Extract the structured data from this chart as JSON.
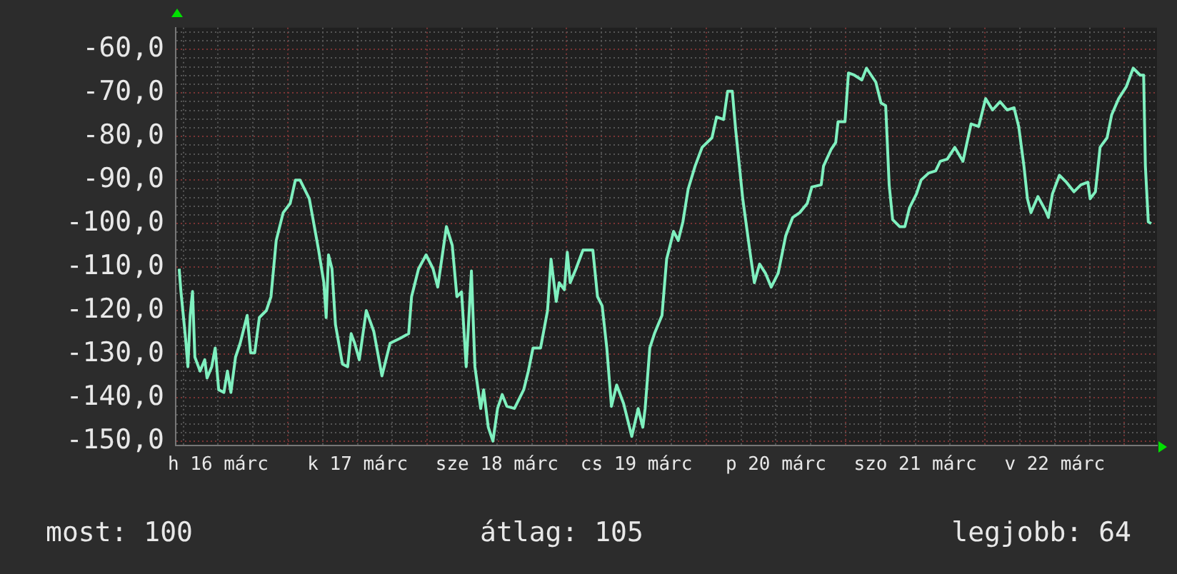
{
  "chart_data": {
    "type": "line",
    "x": [
      "--03-16T05:18",
      "--03-16T05:36",
      "--03-16T06:24",
      "--03-16T06:48",
      "--03-16T07:12",
      "--03-16T07:36",
      "--03-16T08:00",
      "--03-16T08:54",
      "--03-16T09:42",
      "--03-16T10:06",
      "--03-16T10:54",
      "--03-16T11:30",
      "--03-16T12:06",
      "--03-16T13:00",
      "--03-16T13:36",
      "--03-16T14:12",
      "--03-16T15:00",
      "--03-16T15:48",
      "--03-16T17:00",
      "--03-16T17:36",
      "--03-16T18:18",
      "--03-16T19:06",
      "--03-16T20:18",
      "--03-16T21:06",
      "--03-16T22:00",
      "--03-16T23:12",
      "--03-17T00:24",
      "--03-17T01:18",
      "--03-17T02:06",
      "--03-17T03:42",
      "--03-17T05:18",
      "--03-17T06:12",
      "--03-17T06:36",
      "--03-17T07:00",
      "--03-17T07:36",
      "--03-17T08:12",
      "--03-17T09:24",
      "--03-17T10:18",
      "--03-17T10:54",
      "--03-17T11:30",
      "--03-17T12:18",
      "--03-17T13:30",
      "--03-17T14:48",
      "--03-17T16:12",
      "--03-17T17:36",
      "--03-17T19:18",
      "--03-17T20:48",
      "--03-17T21:18",
      "--03-17T22:30",
      "--03-17T23:48",
      "--03-18T01:00",
      "--03-18T01:48",
      "--03-18T03:18",
      "--03-18T04:18",
      "--03-18T05:06",
      "--03-18T05:54",
      "--03-18T06:42",
      "--03-18T07:36",
      "--03-18T08:12",
      "--03-18T09:12",
      "--03-18T09:42",
      "--03-18T10:30",
      "--03-18T11:18",
      "--03-18T12:06",
      "--03-18T12:54",
      "--03-18T13:42",
      "--03-18T15:00",
      "--03-18T16:36",
      "--03-18T17:24",
      "--03-18T18:12",
      "--03-18T19:30",
      "--03-18T20:42",
      "--03-18T21:18",
      "--03-18T22:12",
      "--03-18T22:42",
      "--03-18T23:36",
      "--03-19T00:06",
      "--03-19T00:36",
      "--03-19T01:36",
      "--03-19T02:48",
      "--03-19T04:30",
      "--03-19T05:18",
      "--03-19T06:06",
      "--03-19T06:54",
      "--03-19T07:42",
      "--03-19T08:36",
      "--03-19T09:48",
      "--03-19T11:12",
      "--03-19T12:18",
      "--03-19T13:06",
      "--03-19T13:30",
      "--03-19T14:18",
      "--03-19T15:06",
      "--03-19T16:24",
      "--03-19T17:12",
      "--03-19T18:24",
      "--03-19T19:12",
      "--03-19T20:00",
      "--03-19T20:54",
      "--03-19T22:06",
      "--03-19T23:18",
      "--03-20T01:00",
      "--03-20T01:48",
      "--03-20T03:00",
      "--03-20T03:42",
      "--03-20T04:30",
      "--03-20T05:06",
      "--03-20T06:18",
      "--03-20T07:30",
      "--03-20T08:18",
      "--03-20T09:12",
      "--03-20T10:12",
      "--03-20T11:12",
      "--03-20T12:24",
      "--03-20T13:42",
      "--03-20T14:54",
      "--03-20T16:06",
      "--03-20T17:24",
      "--03-20T18:12",
      "--03-20T19:48",
      "--03-20T20:12",
      "--03-20T21:30",
      "--03-20T22:18",
      "--03-20T22:42",
      "--03-20T23:54",
      "--03-21T00:30",
      "--03-21T01:30",
      "--03-21T02:48",
      "--03-21T03:36",
      "--03-21T05:12",
      "--03-21T06:06",
      "--03-21T06:54",
      "--03-21T07:30",
      "--03-21T08:06",
      "--03-21T09:18",
      "--03-21T10:12",
      "--03-21T11:00",
      "--03-21T12:12",
      "--03-21T13:00",
      "--03-21T14:18",
      "--03-21T15:30",
      "--03-21T16:18",
      "--03-21T17:30",
      "--03-21T18:48",
      "--03-21T20:12",
      "--03-21T21:36",
      "--03-21T22:54",
      "--03-22T00:06",
      "--03-22T01:18",
      "--03-22T02:36",
      "--03-22T03:48",
      "--03-22T05:00",
      "--03-22T05:48",
      "--03-22T06:42",
      "--03-22T07:18",
      "--03-22T07:54",
      "--03-22T09:06",
      "--03-22T10:24",
      "--03-22T10:54",
      "--03-22T11:36",
      "--03-22T12:48",
      "--03-22T14:00",
      "--03-22T15:18",
      "--03-22T16:30",
      "--03-22T17:42",
      "--03-22T18:06",
      "--03-22T19:00",
      "--03-22T19:48",
      "--03-22T21:00",
      "--03-22T21:48",
      "--03-22T23:00",
      "--03-23T00:18",
      "--03-23T01:30",
      "--03-23T02:42",
      "--03-23T03:18",
      "--03-23T03:36",
      "--03-23T04:06",
      "--03-23T04:36"
    ],
    "series": [
      {
        "color": "#7ff0bf",
        "values": [
          -110.4,
          -115.6,
          -126.4,
          -132.9,
          -121.1,
          -115.6,
          -130.7,
          -133.9,
          -131.3,
          -135.5,
          -132.9,
          -128.6,
          -138.2,
          -138.8,
          -133.9,
          -138.8,
          -130.7,
          -127.5,
          -121.1,
          -129.7,
          -129.7,
          -121.6,
          -120.0,
          -116.8,
          -103.9,
          -97.5,
          -95.4,
          -90.0,
          -90.0,
          -94.3,
          -106.1,
          -113.6,
          -121.6,
          -107.2,
          -110.4,
          -123.2,
          -132.3,
          -132.9,
          -125.3,
          -127.5,
          -131.3,
          -120.0,
          -124.8,
          -135.0,
          -127.5,
          -126.4,
          -125.3,
          -116.8,
          -110.4,
          -107.2,
          -110.4,
          -114.6,
          -100.7,
          -105.0,
          -116.8,
          -115.7,
          -132.9,
          -110.9,
          -132.9,
          -142.5,
          -138.2,
          -146.8,
          -150.0,
          -142.5,
          -139.3,
          -142.0,
          -142.5,
          -138.2,
          -133.9,
          -128.6,
          -128.6,
          -120.0,
          -108.2,
          -117.9,
          -113.6,
          -115.2,
          -106.6,
          -113.6,
          -110.4,
          -106.1,
          -106.1,
          -116.8,
          -118.9,
          -128.6,
          -142.0,
          -137.1,
          -141.4,
          -148.9,
          -142.5,
          -146.8,
          -142.5,
          -128.6,
          -125.3,
          -121.1,
          -108.2,
          -101.8,
          -103.9,
          -99.6,
          -92.1,
          -86.8,
          -82.5,
          -80.3,
          -75.5,
          -76.1,
          -69.6,
          -69.6,
          -78.7,
          -94.3,
          -106.1,
          -113.6,
          -109.3,
          -111.4,
          -114.6,
          -111.4,
          -102.8,
          -98.6,
          -97.5,
          -95.4,
          -91.6,
          -91.1,
          -86.8,
          -83.0,
          -81.4,
          -76.6,
          -76.6,
          -65.4,
          -65.9,
          -67.0,
          -64.3,
          -67.5,
          -72.3,
          -72.9,
          -91.1,
          -99.1,
          -100.7,
          -100.7,
          -96.4,
          -93.2,
          -90.0,
          -88.4,
          -87.9,
          -85.7,
          -85.2,
          -82.5,
          -85.7,
          -77.1,
          -77.7,
          -71.3,
          -73.9,
          -72.0,
          -73.9,
          -73.4,
          -77.7,
          -86.8,
          -94.3,
          -97.5,
          -93.8,
          -97.0,
          -98.6,
          -93.2,
          -88.9,
          -90.5,
          -92.7,
          -91.1,
          -90.5,
          -94.3,
          -92.7,
          -82.5,
          -80.3,
          -75.0,
          -71.3,
          -68.6,
          -64.3,
          -65.9,
          -65.9,
          -86.8,
          -99.6,
          -100.0
        ]
      }
    ],
    "xlim": [
      "--03-16T04:42",
      "--03-23T05:36"
    ],
    "xticks": [
      {
        "value": "--03-16T06:00",
        "label": null
      },
      {
        "value": "--03-16T12:00",
        "label": "h 16 márc"
      },
      {
        "value": "--03-16T18:00",
        "label": null
      },
      {
        "value": "--03-17T00:00",
        "label": null
      },
      {
        "value": "--03-17T06:00",
        "label": null
      },
      {
        "value": "--03-17T12:00",
        "label": "k 17 márc"
      },
      {
        "value": "--03-17T18:00",
        "label": null
      },
      {
        "value": "--03-18T00:00",
        "label": null
      },
      {
        "value": "--03-18T06:00",
        "label": null
      },
      {
        "value": "--03-18T12:00",
        "label": "sze 18 márc"
      },
      {
        "value": "--03-18T18:00",
        "label": null
      },
      {
        "value": "--03-19T00:00",
        "label": null
      },
      {
        "value": "--03-19T06:00",
        "label": null
      },
      {
        "value": "--03-19T12:00",
        "label": "cs 19 márc"
      },
      {
        "value": "--03-19T18:00",
        "label": null
      },
      {
        "value": "--03-20T00:00",
        "label": null
      },
      {
        "value": "--03-20T06:00",
        "label": null
      },
      {
        "value": "--03-20T12:00",
        "label": "p 20 márc"
      },
      {
        "value": "--03-20T18:00",
        "label": null
      },
      {
        "value": "--03-21T00:00",
        "label": null
      },
      {
        "value": "--03-21T06:00",
        "label": null
      },
      {
        "value": "--03-21T12:00",
        "label": "szo 21 márc"
      },
      {
        "value": "--03-21T18:00",
        "label": null
      },
      {
        "value": "--03-22T00:00",
        "label": null
      },
      {
        "value": "--03-22T06:00",
        "label": null
      },
      {
        "value": "--03-22T12:00",
        "label": "v 22 márc"
      },
      {
        "value": "--03-22T18:00",
        "label": null
      },
      {
        "value": "--03-23T00:00",
        "label": null
      }
    ],
    "ylim": [
      -151,
      -55
    ],
    "yticks": [
      {
        "value": -150,
        "label": "-150,0"
      },
      {
        "value": -148,
        "label": null
      },
      {
        "value": -146,
        "label": null
      },
      {
        "value": -144,
        "label": null
      },
      {
        "value": -142,
        "label": null
      },
      {
        "value": -140,
        "label": "-140,0"
      },
      {
        "value": -138,
        "label": null
      },
      {
        "value": -136,
        "label": null
      },
      {
        "value": -134,
        "label": null
      },
      {
        "value": -132,
        "label": null
      },
      {
        "value": -130,
        "label": "-130,0"
      },
      {
        "value": -128,
        "label": null
      },
      {
        "value": -126,
        "label": null
      },
      {
        "value": -124,
        "label": null
      },
      {
        "value": -122,
        "label": null
      },
      {
        "value": -120,
        "label": "-120,0"
      },
      {
        "value": -118,
        "label": null
      },
      {
        "value": -116,
        "label": null
      },
      {
        "value": -114,
        "label": null
      },
      {
        "value": -112,
        "label": null
      },
      {
        "value": -110,
        "label": "-110,0"
      },
      {
        "value": -108,
        "label": null
      },
      {
        "value": -106,
        "label": null
      },
      {
        "value": -104,
        "label": null
      },
      {
        "value": -102,
        "label": null
      },
      {
        "value": -100,
        "label": "-100,0"
      },
      {
        "value": -98,
        "label": null
      },
      {
        "value": -96,
        "label": null
      },
      {
        "value": -94,
        "label": null
      },
      {
        "value": -92,
        "label": null
      },
      {
        "value": -90,
        "label": "-90,0"
      },
      {
        "value": -88,
        "label": null
      },
      {
        "value": -86,
        "label": null
      },
      {
        "value": -84,
        "label": null
      },
      {
        "value": -82,
        "label": null
      },
      {
        "value": -80,
        "label": "-80,0"
      },
      {
        "value": -78,
        "label": null
      },
      {
        "value": -76,
        "label": null
      },
      {
        "value": -74,
        "label": null
      },
      {
        "value": -72,
        "label": null
      },
      {
        "value": -70,
        "label": "-70,0"
      },
      {
        "value": -68,
        "label": null
      },
      {
        "value": -66,
        "label": null
      },
      {
        "value": -64,
        "label": null
      },
      {
        "value": -62,
        "label": null
      },
      {
        "value": -60,
        "label": "-60,0"
      },
      {
        "value": -58,
        "label": null
      },
      {
        "value": -56,
        "label": null
      }
    ],
    "grid": true,
    "legend": false,
    "marker": "none",
    "line_style": "solid",
    "annotations": [
      "most: 100",
      "átlag: 105",
      "legjobb: 64"
    ]
  }
}
